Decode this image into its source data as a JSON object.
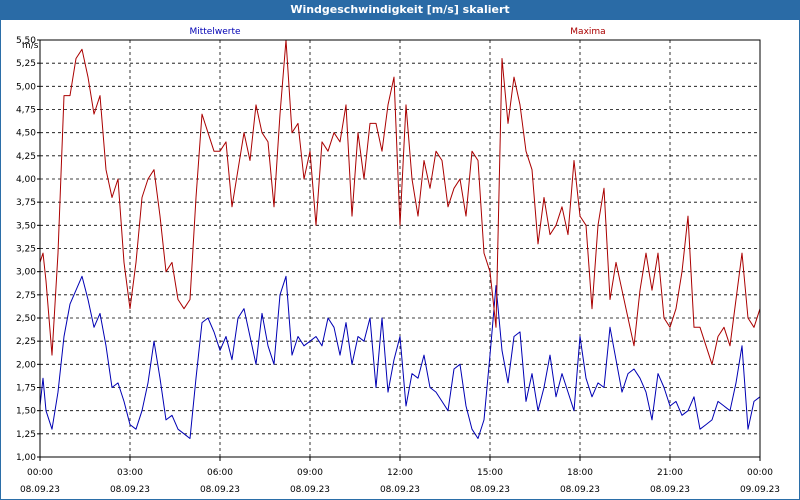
{
  "chart_data": {
    "type": "line",
    "title": "Windgeschwindigkeit [m/s] skaliert",
    "ylabel": "m/s",
    "ylim": [
      1.0,
      5.5
    ],
    "yticks": [
      "1,00",
      "1,25",
      "1,50",
      "1,75",
      "2,00",
      "2,25",
      "2,50",
      "2,75",
      "3,00",
      "3,25",
      "3,50",
      "3,75",
      "4,00",
      "4,25",
      "4,50",
      "4,75",
      "5,00",
      "5,25",
      "5,50"
    ],
    "xlim": [
      0,
      24
    ],
    "xtick_times": [
      "00:00",
      "03:00",
      "06:00",
      "09:00",
      "12:00",
      "15:00",
      "18:00",
      "21:00",
      "00:00"
    ],
    "xtick_dates": [
      "08.09.23",
      "08.09.23",
      "08.09.23",
      "08.09.23",
      "08.09.23",
      "08.09.23",
      "08.09.23",
      "08.09.23",
      "09.09.23"
    ],
    "grid": true,
    "series": [
      {
        "name": "Mittelwerte",
        "color": "#0000b4",
        "x": [
          0.0,
          0.1,
          0.2,
          0.4,
          0.6,
          0.8,
          1.0,
          1.2,
          1.4,
          1.6,
          1.8,
          2.0,
          2.2,
          2.4,
          2.6,
          2.8,
          3.0,
          3.2,
          3.4,
          3.6,
          3.8,
          4.0,
          4.2,
          4.4,
          4.6,
          4.8,
          5.0,
          5.2,
          5.4,
          5.6,
          5.8,
          6.0,
          6.2,
          6.4,
          6.6,
          6.8,
          7.0,
          7.2,
          7.4,
          7.6,
          7.8,
          8.0,
          8.2,
          8.4,
          8.6,
          8.8,
          9.0,
          9.2,
          9.4,
          9.6,
          9.8,
          10.0,
          10.2,
          10.4,
          10.6,
          10.8,
          11.0,
          11.2,
          11.4,
          11.6,
          11.8,
          12.0,
          12.2,
          12.4,
          12.6,
          12.8,
          13.0,
          13.2,
          13.4,
          13.6,
          13.8,
          14.0,
          14.2,
          14.4,
          14.6,
          14.8,
          15.0,
          15.2,
          15.4,
          15.6,
          15.8,
          16.0,
          16.2,
          16.4,
          16.6,
          16.8,
          17.0,
          17.2,
          17.4,
          17.6,
          17.8,
          18.0,
          18.2,
          18.4,
          18.6,
          18.8,
          19.0,
          19.2,
          19.4,
          19.6,
          19.8,
          20.0,
          20.2,
          20.4,
          20.6,
          20.8,
          21.0,
          21.2,
          21.4,
          21.6,
          21.8,
          22.0,
          22.2,
          22.4,
          22.6,
          22.8,
          23.0,
          23.2,
          23.4,
          23.6,
          23.8,
          24.0
        ],
        "values": [
          1.55,
          1.85,
          1.5,
          1.3,
          1.7,
          2.3,
          2.65,
          2.8,
          2.95,
          2.7,
          2.4,
          2.55,
          2.2,
          1.75,
          1.8,
          1.6,
          1.35,
          1.3,
          1.5,
          1.8,
          2.25,
          1.85,
          1.4,
          1.45,
          1.3,
          1.25,
          1.2,
          1.85,
          2.45,
          2.5,
          2.35,
          2.15,
          2.3,
          2.05,
          2.5,
          2.6,
          2.3,
          2.0,
          2.55,
          2.2,
          2.0,
          2.75,
          2.95,
          2.1,
          2.3,
          2.2,
          2.25,
          2.3,
          2.2,
          2.5,
          2.4,
          2.1,
          2.45,
          2.0,
          2.3,
          2.25,
          2.5,
          1.75,
          2.5,
          1.7,
          2.05,
          2.3,
          1.55,
          1.9,
          1.85,
          2.1,
          1.75,
          1.7,
          1.6,
          1.5,
          1.95,
          2.0,
          1.55,
          1.3,
          1.2,
          1.4,
          2.1,
          2.85,
          2.15,
          1.8,
          2.3,
          2.35,
          1.6,
          1.9,
          1.5,
          1.75,
          2.1,
          1.65,
          1.9,
          1.7,
          1.5,
          2.3,
          1.85,
          1.65,
          1.8,
          1.75,
          2.4,
          2.05,
          1.7,
          1.9,
          1.95,
          1.85,
          1.7,
          1.4,
          1.9,
          1.75,
          1.55,
          1.6,
          1.45,
          1.5,
          1.65,
          1.3,
          1.35,
          1.4,
          1.6,
          1.55,
          1.5,
          1.8,
          2.2,
          1.3,
          1.6,
          1.65
        ],
        "values_note": ""
      },
      {
        "name": "Maxima",
        "color": "#aa0000",
        "x": [
          0.0,
          0.1,
          0.2,
          0.4,
          0.6,
          0.8,
          1.0,
          1.2,
          1.4,
          1.6,
          1.8,
          2.0,
          2.2,
          2.4,
          2.6,
          2.8,
          3.0,
          3.2,
          3.4,
          3.6,
          3.8,
          4.0,
          4.2,
          4.4,
          4.6,
          4.8,
          5.0,
          5.2,
          5.4,
          5.6,
          5.8,
          6.0,
          6.2,
          6.4,
          6.6,
          6.8,
          7.0,
          7.2,
          7.4,
          7.6,
          7.8,
          8.0,
          8.2,
          8.4,
          8.6,
          8.8,
          9.0,
          9.2,
          9.4,
          9.6,
          9.8,
          10.0,
          10.2,
          10.4,
          10.6,
          10.8,
          11.0,
          11.2,
          11.4,
          11.6,
          11.8,
          12.0,
          12.2,
          12.4,
          12.6,
          12.8,
          13.0,
          13.2,
          13.4,
          13.6,
          13.8,
          14.0,
          14.2,
          14.4,
          14.6,
          14.8,
          15.0,
          15.2,
          15.4,
          15.6,
          15.8,
          16.0,
          16.2,
          16.4,
          16.6,
          16.8,
          17.0,
          17.2,
          17.4,
          17.6,
          17.8,
          18.0,
          18.2,
          18.4,
          18.6,
          18.8,
          19.0,
          19.2,
          19.4,
          19.6,
          19.8,
          20.0,
          20.2,
          20.4,
          20.6,
          20.8,
          21.0,
          21.2,
          21.4,
          21.6,
          21.8,
          22.0,
          22.2,
          22.4,
          22.6,
          22.8,
          23.0,
          23.2,
          23.4,
          23.6,
          23.8,
          24.0
        ],
        "values": [
          3.1,
          3.2,
          2.9,
          2.1,
          3.2,
          4.9,
          4.9,
          5.3,
          5.4,
          5.1,
          4.7,
          4.9,
          4.1,
          3.8,
          4.0,
          3.1,
          2.6,
          3.1,
          3.8,
          4.0,
          4.1,
          3.6,
          3.0,
          3.1,
          2.7,
          2.6,
          2.7,
          3.8,
          4.7,
          4.5,
          4.3,
          4.3,
          4.4,
          3.7,
          4.1,
          4.5,
          4.2,
          4.8,
          4.5,
          4.4,
          3.7,
          4.7,
          5.5,
          4.5,
          4.6,
          4.0,
          4.3,
          3.5,
          4.4,
          4.3,
          4.5,
          4.4,
          4.8,
          3.6,
          4.5,
          4.0,
          4.6,
          4.6,
          4.3,
          4.8,
          5.1,
          3.5,
          4.8,
          4.0,
          3.6,
          4.2,
          3.9,
          4.3,
          4.2,
          3.7,
          3.9,
          4.0,
          3.6,
          4.3,
          4.2,
          3.2,
          3.0,
          2.4,
          5.3,
          4.6,
          5.1,
          4.8,
          4.3,
          4.1,
          3.3,
          3.8,
          3.4,
          3.5,
          3.7,
          3.4,
          4.2,
          3.6,
          3.5,
          2.6,
          3.5,
          3.9,
          2.7,
          3.1,
          2.8,
          2.5,
          2.2,
          2.8,
          3.2,
          2.8,
          3.2,
          2.5,
          2.4,
          2.6,
          3.0,
          3.6,
          2.4,
          2.4,
          2.2,
          2.0,
          2.3,
          2.4,
          2.2,
          2.7,
          3.2,
          2.5,
          2.4,
          2.6
        ],
        "values_note": ""
      }
    ]
  }
}
